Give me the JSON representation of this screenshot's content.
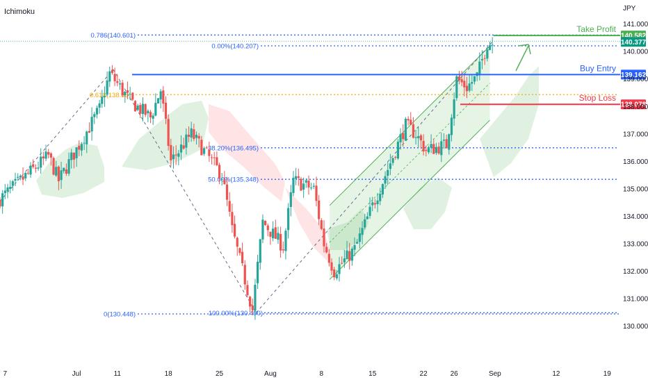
{
  "indicator_label": "Ichimoku",
  "currency_label": "JPY",
  "colors": {
    "up": "#26a69a",
    "down": "#ef5350",
    "fib": "#2962ff",
    "fib618": "#f7a600",
    "entry": "#2962ff",
    "stop": "#f23645",
    "tp": "#4caf50",
    "channel": "#4caf50",
    "cloud_green": "#c8e6c9",
    "cloud_red": "#ffcdd2"
  },
  "chart_data": {
    "type": "candlestick",
    "title": "",
    "xlabel": "",
    "ylabel": "JPY",
    "ylim": [
      129.7,
      141.35
    ],
    "grid": false,
    "y_ticks": [
      "141.000",
      "140.000",
      "139.000",
      "138.000",
      "137.000",
      "136.000",
      "135.000",
      "134.000",
      "133.000",
      "132.000",
      "131.000",
      "130.000"
    ],
    "x_ticks": [
      "7",
      "Jul",
      "11",
      "18",
      "25",
      "Aug",
      "8",
      "15",
      "22",
      "26",
      "Sep",
      "12",
      "19"
    ],
    "x_tick_positions": [
      3,
      10,
      14,
      19,
      24,
      29,
      34,
      39,
      44,
      47,
      51,
      57,
      62
    ],
    "x_range": [
      2.5,
      66
    ],
    "anchors": [
      {
        "day": 2.5,
        "price": 134.55
      },
      {
        "day": 7.5,
        "price": 136.2
      },
      {
        "day": 8.5,
        "price": 135.3
      },
      {
        "day": 12.5,
        "price": 137.9
      },
      {
        "day": 13.5,
        "price": 139.2
      },
      {
        "day": 15.5,
        "price": 138.2
      },
      {
        "day": 17.5,
        "price": 137.6
      },
      {
        "day": 18.5,
        "price": 138.6
      },
      {
        "day": 19.5,
        "price": 136.0
      },
      {
        "day": 21.5,
        "price": 137.0
      },
      {
        "day": 24.5,
        "price": 135.5
      },
      {
        "day": 25.5,
        "price": 133.5
      },
      {
        "day": 27.5,
        "price": 130.6
      },
      {
        "day": 28.5,
        "price": 133.8
      },
      {
        "day": 30.5,
        "price": 132.9
      },
      {
        "day": 31.5,
        "price": 135.3
      },
      {
        "day": 33.5,
        "price": 135.0
      },
      {
        "day": 34.5,
        "price": 133.0
      },
      {
        "day": 35.5,
        "price": 132.0
      },
      {
        "day": 37.5,
        "price": 132.8
      },
      {
        "day": 40.5,
        "price": 135.5
      },
      {
        "day": 42.5,
        "price": 137.3
      },
      {
        "day": 43.5,
        "price": 137.0
      },
      {
        "day": 44.5,
        "price": 136.4
      },
      {
        "day": 46.5,
        "price": 136.6
      },
      {
        "day": 47.5,
        "price": 139.0
      },
      {
        "day": 48.5,
        "price": 138.7
      },
      {
        "day": 49.5,
        "price": 139.1
      },
      {
        "day": 50.5,
        "price": 140.3
      }
    ],
    "zigzag": [
      {
        "day": 2.5,
        "price": 134.55
      },
      {
        "day": 13.6,
        "price": 139.35
      },
      {
        "day": 27.6,
        "price": 130.49
      },
      {
        "day": 50.8,
        "price": 140.38
      }
    ],
    "channel": {
      "lower_start": {
        "day": 34.8,
        "price": 131.7
      },
      "lower_end": {
        "day": 50.5,
        "price": 137.5
      },
      "offset": 2.7
    },
    "fib_levels": [
      {
        "label": "0.786(140.601)",
        "price": 140.601,
        "kind": "ext"
      },
      {
        "label": "0.00%(140.207)",
        "price": 140.207,
        "kind": "ret"
      },
      {
        "label": "0.618(138.43)",
        "price": 138.43,
        "kind": "gold"
      },
      {
        "label": "38.20%(136.495)",
        "price": 136.495,
        "kind": "ret"
      },
      {
        "label": "50.00%(135.348)",
        "price": 135.348,
        "kind": "ret"
      },
      {
        "label": "100.00%(130.490)",
        "price": 130.49,
        "kind": "ret"
      },
      {
        "label": "0(130.448)",
        "price": 130.448,
        "kind": "ext"
      }
    ],
    "trade_levels": [
      {
        "label": "Take Profit",
        "price": 140.582,
        "tag": "140.582",
        "color_key": "tp"
      },
      {
        "label": "Buy Entry",
        "price": 139.162,
        "tag": "139.162",
        "color_key": "entry"
      },
      {
        "label": "Stop Loss",
        "price": 138.078,
        "tag": "138.078",
        "color_key": "stop"
      }
    ],
    "last_price": {
      "price": 140.377,
      "tag": "140.377"
    }
  }
}
